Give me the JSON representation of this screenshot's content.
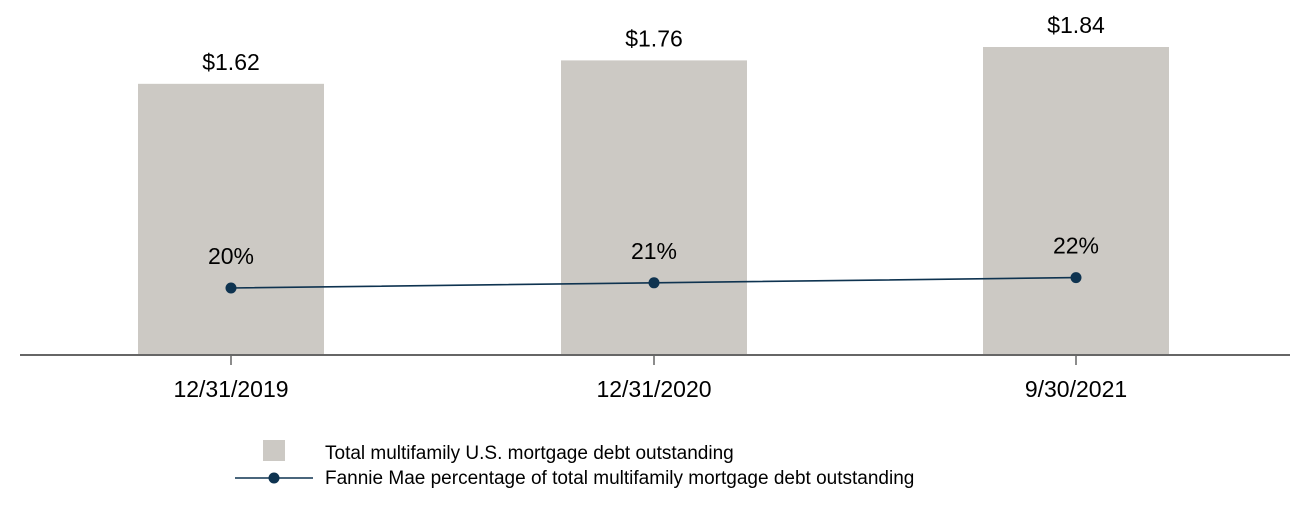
{
  "chart_data": {
    "type": "bar",
    "categories": [
      "12/31/2019",
      "12/31/2020",
      "9/30/2021"
    ],
    "series": [
      {
        "name": "Total multifamily U.S. mortgage debt outstanding",
        "kind": "bar",
        "values": [
          1.62,
          1.76,
          1.84
        ],
        "labels": [
          "$1.62",
          "$1.76",
          "$1.84"
        ],
        "color": "#ccc9c4"
      },
      {
        "name": "Fannie Mae percentage of total multifamily mortgage debt outstanding",
        "kind": "line",
        "values": [
          20,
          21,
          22
        ],
        "labels": [
          "20%",
          "21%",
          "22%"
        ],
        "color": "#0e3350"
      }
    ],
    "bar_ylim": [
      0,
      2.15
    ],
    "line_ylim": [
      10,
      30
    ],
    "legend_position": "bottom-center",
    "grid": false,
    "axis_color": "#666666"
  }
}
